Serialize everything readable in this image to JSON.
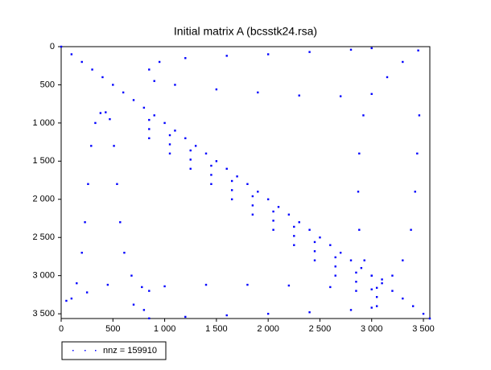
{
  "chart_data": {
    "type": "spy",
    "title": "Initial matrix A (bcsstk24.rsa)",
    "legend_label": "nnz = 159910",
    "color": "#0000ff",
    "y_inverted": true,
    "xlim": [
      0,
      3562
    ],
    "ylim": [
      0,
      3562
    ],
    "xticks": [
      0,
      500,
      {
        "value": 1000,
        "label": "1 000"
      },
      {
        "value": 1500,
        "label": "1 500"
      },
      {
        "value": 2000,
        "label": "2 000"
      },
      {
        "value": 2500,
        "label": "2 500"
      },
      {
        "value": 3000,
        "label": "3 000"
      },
      {
        "value": 3500,
        "label": "3 500"
      }
    ],
    "yticks": [
      0,
      500,
      {
        "value": 1000,
        "label": "1 000"
      },
      {
        "value": 1500,
        "label": "1 500"
      },
      {
        "value": 2000,
        "label": "2 000"
      },
      {
        "value": 2500,
        "label": "2 500"
      },
      {
        "value": 3000,
        "label": "3 000"
      },
      {
        "value": 3500,
        "label": "3 500"
      }
    ],
    "x": [
      0,
      100,
      200,
      300,
      400,
      500,
      600,
      700,
      800,
      900,
      1000,
      1100,
      1200,
      1300,
      1400,
      1500,
      1600,
      1700,
      1800,
      1900,
      2000,
      2100,
      2200,
      2300,
      2400,
      2500,
      2600,
      2700,
      2800,
      2900,
      3000,
      3100,
      3200,
      3300,
      3400,
      3500,
      3562,
      850,
      1050,
      1250,
      1450,
      1650,
      1850,
      2050,
      2250,
      2450,
      2650,
      2850,
      3050,
      850,
      1050,
      1250,
      1450,
      1650,
      1850,
      2050,
      2250,
      2450,
      2650,
      2850,
      3050,
      850,
      1050,
      1250,
      1450,
      1650,
      1850,
      2050,
      2250,
      2450,
      2650,
      2850,
      3050,
      100,
      150,
      200,
      230,
      260,
      290,
      330,
      380,
      430,
      470,
      510,
      540,
      570,
      610,
      680,
      780,
      2920,
      2880,
      2870,
      2880,
      2930,
      3000,
      3100,
      3200,
      3300,
      3380,
      3420,
      3440,
      3460,
      850,
      950,
      1200,
      1600,
      2000,
      2400,
      2800,
      3000,
      900,
      1100,
      1500,
      1900,
      2300,
      2700,
      3000,
      3150,
      3300,
      3450,
      850,
      1000,
      1400,
      1800,
      2200,
      2600,
      3000,
      850,
      1200,
      1600,
      2000,
      2400,
      2800,
      3000,
      50,
      250,
      450,
      700,
      800
    ],
    "y": [
      0,
      100,
      200,
      300,
      400,
      500,
      600,
      700,
      800,
      900,
      1000,
      1100,
      1200,
      1300,
      1400,
      1500,
      1600,
      1700,
      1800,
      1900,
      2000,
      2100,
      2200,
      2300,
      2400,
      2500,
      2600,
      2700,
      2800,
      2900,
      3000,
      3100,
      3200,
      3300,
      3400,
      3500,
      3562,
      960,
      1160,
      1360,
      1560,
      1760,
      1960,
      2160,
      2360,
      2560,
      2760,
      2960,
      3160,
      1080,
      1280,
      1480,
      1680,
      1880,
      2080,
      2280,
      2480,
      2680,
      2880,
      3080,
      3280,
      1200,
      1400,
      1600,
      1800,
      2000,
      2200,
      2400,
      2600,
      2800,
      3000,
      3200,
      3400,
      3300,
      3100,
      2700,
      2300,
      1800,
      1300,
      1000,
      870,
      860,
      950,
      1300,
      1800,
      2300,
      2700,
      3000,
      3150,
      900,
      1400,
      1900,
      2400,
      2800,
      3000,
      3050,
      3000,
      2800,
      2400,
      1900,
      1400,
      900,
      300,
      200,
      150,
      120,
      100,
      70,
      40,
      20,
      450,
      500,
      560,
      600,
      640,
      650,
      620,
      400,
      200,
      50,
      3200,
      3140,
      3120,
      3120,
      3130,
      3150,
      3180,
      3560,
      3540,
      3520,
      3500,
      3480,
      3450,
      3420,
      3330,
      3220,
      3120,
      3380,
      3450
    ]
  }
}
